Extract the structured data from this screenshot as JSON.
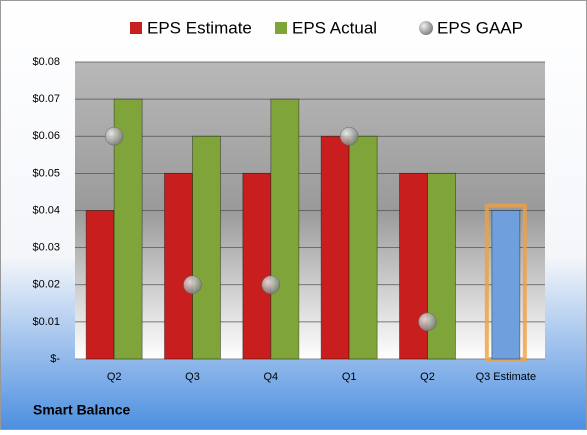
{
  "chart_data": {
    "type": "bar",
    "title": "Smart Balance",
    "categories": [
      "Q2",
      "Q3",
      "Q4",
      "Q1",
      "Q2",
      "Q3 Estimate"
    ],
    "series": [
      {
        "name": "EPS Estimate",
        "color": "#c81e1e",
        "point_colors": [
          "#c81e1e",
          "#c81e1e",
          "#c81e1e",
          "#c81e1e",
          "#c81e1e",
          "#6f9fdc"
        ],
        "values": [
          0.04,
          0.05,
          0.05,
          0.06,
          0.05,
          0.04
        ]
      },
      {
        "name": "EPS Actual",
        "color": "#7fa53a",
        "values": [
          0.07,
          0.06,
          0.07,
          0.06,
          0.05,
          null
        ]
      },
      {
        "name": "EPS GAAP",
        "color": "#a0a0a0",
        "marker": "bubble",
        "values": [
          0.06,
          0.02,
          0.02,
          0.06,
          0.01,
          null
        ]
      }
    ],
    "ylim": [
      0,
      0.08
    ],
    "yticks": [
      {
        "value": 0,
        "label": "$-"
      },
      {
        "value": 0.01,
        "label": "$0.01"
      },
      {
        "value": 0.02,
        "label": "$0.02"
      },
      {
        "value": 0.03,
        "label": "$0.03"
      },
      {
        "value": 0.04,
        "label": "$0.04"
      },
      {
        "value": 0.05,
        "label": "$0.05"
      },
      {
        "value": 0.06,
        "label": "$0.06"
      },
      {
        "value": 0.07,
        "label": "$0.07"
      },
      {
        "value": 0.08,
        "label": "$0.08"
      }
    ],
    "grid": true,
    "legend": "top"
  }
}
